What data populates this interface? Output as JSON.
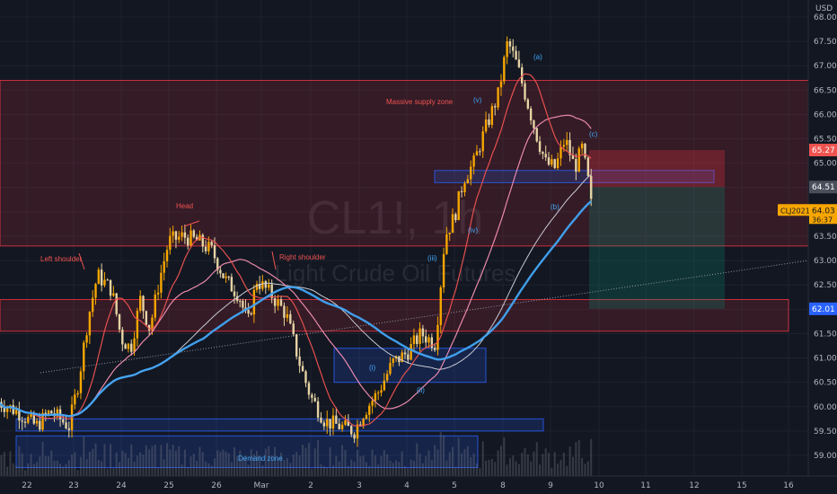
{
  "chart_data": {
    "type": "candlestick",
    "symbol_watermark": "CL1!, 1h",
    "name_watermark": "Light Crude Oil Futures",
    "currency": "USD",
    "x_labels": [
      "22",
      "23",
      "24",
      "25",
      "26",
      "Mar",
      "2",
      "3",
      "4",
      "5",
      "8",
      "9",
      "10",
      "11",
      "12",
      "15",
      "16"
    ],
    "y_ticks": [
      59.0,
      59.5,
      60.0,
      60.5,
      61.0,
      61.5,
      62.0,
      62.5,
      63.0,
      63.5,
      64.0,
      64.5,
      65.0,
      65.5,
      66.0,
      66.5,
      67.0,
      67.5,
      68.0
    ],
    "ylim": [
      58.65,
      68.3
    ],
    "price_labels": [
      {
        "text": "65.27",
        "value": 65.27,
        "color": "#ef5350"
      },
      {
        "text": "64.51",
        "value": 64.51,
        "color": "#4a4f5c"
      },
      {
        "text": "62.01",
        "value": 62.01,
        "color": "#2962ff"
      }
    ],
    "last_price": {
      "symbol": "CLJ2021",
      "price": "64.03",
      "timer": "36:37",
      "color": "#f7a600"
    },
    "zones": [
      {
        "label": "Massive supply zone",
        "from": 63.3,
        "to": 66.7,
        "color": "red"
      },
      {
        "label": "",
        "from": 61.55,
        "to": 62.2,
        "color": "red"
      },
      {
        "label": "Demand zone",
        "from": 58.75,
        "to": 59.4,
        "color": "blue"
      },
      {
        "label": "",
        "from": 59.5,
        "to": 59.75,
        "color": "blue"
      },
      {
        "label": "",
        "from": 60.5,
        "to": 61.2,
        "color": "blue"
      },
      {
        "label": "",
        "from": 64.6,
        "to": 64.85,
        "color": "blue"
      }
    ],
    "annotations": [
      {
        "text": "Left shoulder",
        "color": "#ef5350"
      },
      {
        "text": "Head",
        "color": "#ef5350"
      },
      {
        "text": "Right shoulder",
        "color": "#ef5350"
      },
      {
        "text": "Massive supply zone",
        "color": "#ef5350"
      },
      {
        "text": "Demand zone",
        "color": "#42a5f5"
      },
      {
        "text": "(i)",
        "color": "#42a5f5"
      },
      {
        "text": "(ii)",
        "color": "#42a5f5"
      },
      {
        "text": "(iii)",
        "color": "#42a5f5"
      },
      {
        "text": "(iv)",
        "color": "#42a5f5"
      },
      {
        "text": "(v)",
        "color": "#42a5f5"
      },
      {
        "text": "(a)",
        "color": "#42a5f5"
      },
      {
        "text": "(b)",
        "color": "#42a5f5"
      },
      {
        "text": "(c)",
        "color": "#42a5f5"
      }
    ],
    "short_position": {
      "entry": 64.51,
      "stop": 65.27,
      "target": 62.01
    },
    "colors": {
      "background": "#131722",
      "up": "#f7a600",
      "down": "#e6d3a3",
      "ma_fast": "#ef5350",
      "ma_mid": "#f48fb1",
      "ma_slow": "#42a5f5",
      "ma_grey": "#d1d4dc"
    }
  }
}
